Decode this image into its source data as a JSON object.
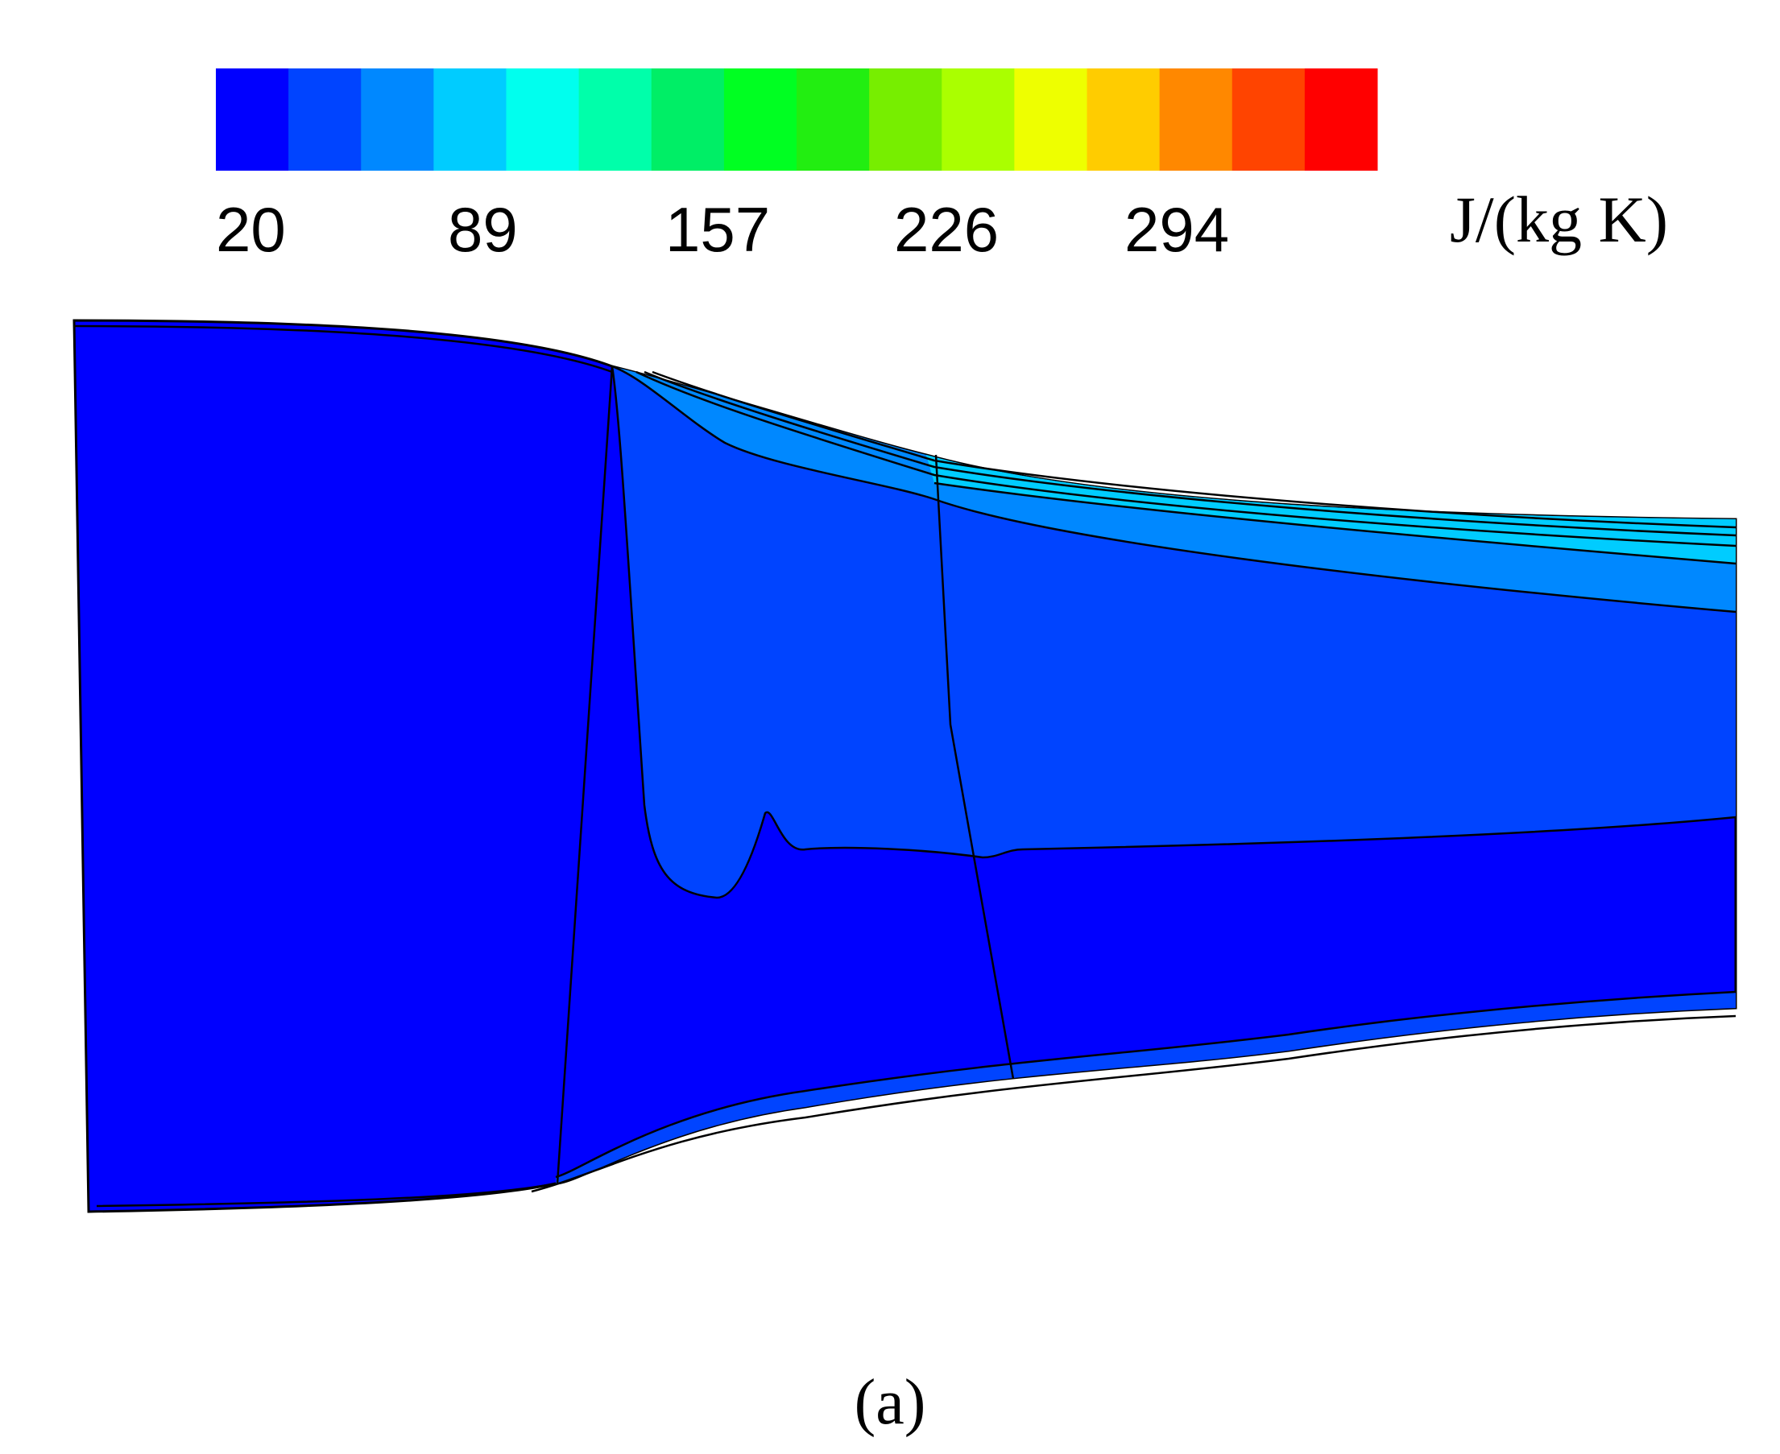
{
  "chart_data": {
    "type": "heatmap",
    "colorbar": {
      "unit": "J/(kg K)",
      "tick_labels": [
        "20",
        "89",
        "157",
        "226",
        "294"
      ],
      "levels": 15,
      "colors": [
        "#0000ff",
        "#0044ff",
        "#0088ff",
        "#00ccff",
        "#00ffee",
        "#00ffaa",
        "#00ee66",
        "#00ff22",
        "#22ee11",
        "#77ee00",
        "#aaff00",
        "#eeff00",
        "#ffcc00",
        "#ff8800",
        "#ff4400",
        "#ff0000"
      ]
    },
    "field": {
      "base_color": "#0000ff",
      "region_colors": [
        "#0044ff",
        "#0088ff",
        "#00ccff",
        "#00ffee"
      ]
    },
    "panel_label": "(a)"
  }
}
